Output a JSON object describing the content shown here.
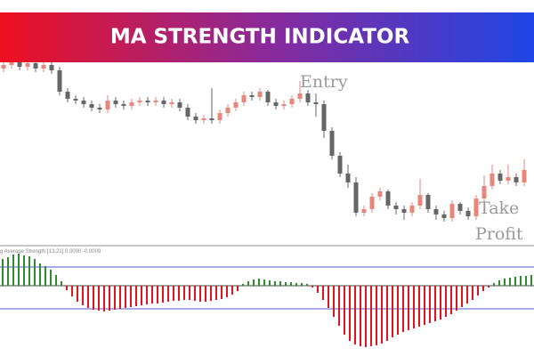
{
  "chart_data": [
    {
      "type": "candlestick",
      "title": "MA STRENGTH INDICATOR",
      "annotations": [
        "Entry",
        "Take",
        "Profit"
      ],
      "up_color": "#e8867c",
      "down_color": "#666666",
      "ylim": [
        0,
        137.5
      ],
      "open": [
        99,
        101,
        103,
        100,
        102,
        99,
        101,
        98,
        86,
        82,
        81,
        79,
        77,
        76,
        81,
        79,
        78,
        80,
        81,
        80,
        81,
        79,
        80,
        77,
        72,
        70,
        71,
        70,
        74,
        77,
        80,
        84,
        83,
        86,
        80,
        78,
        79,
        82,
        85,
        80,
        79,
        64,
        50,
        40,
        35,
        18,
        20,
        27,
        30,
        22,
        20,
        18,
        22,
        28,
        20,
        17,
        15,
        23,
        19,
        16,
        26,
        33,
        40,
        36,
        38,
        35
      ],
      "high": [
        103,
        105,
        105,
        104,
        104,
        103,
        103,
        100,
        88,
        84,
        83,
        81,
        79,
        84,
        83,
        81,
        82,
        83,
        83,
        83,
        83,
        82,
        82,
        79,
        74,
        73,
        88,
        76,
        79,
        82,
        86,
        86,
        88,
        87,
        82,
        81,
        84,
        92,
        87,
        85,
        81,
        66,
        52,
        45,
        38,
        22,
        29,
        32,
        31,
        24,
        22,
        24,
        37,
        29,
        22,
        19,
        25,
        24,
        21,
        28,
        39,
        45,
        42,
        45,
        40,
        48
      ],
      "low": [
        97,
        99,
        98,
        98,
        97,
        97,
        96,
        84,
        80,
        79,
        77,
        75,
        74,
        74,
        77,
        76,
        76,
        78,
        78,
        78,
        77,
        77,
        75,
        70,
        68,
        68,
        68,
        68,
        72,
        75,
        78,
        81,
        81,
        78,
        76,
        76,
        77,
        80,
        78,
        72,
        60,
        48,
        38,
        32,
        16,
        16,
        18,
        25,
        20,
        17,
        14,
        16,
        20,
        18,
        14,
        13,
        13,
        17,
        14,
        14,
        24,
        31,
        34,
        34,
        33,
        33
      ],
      "close": [
        101,
        103,
        100,
        102,
        99,
        101,
        98,
        86,
        82,
        81,
        79,
        77,
        76,
        81,
        79,
        78,
        80,
        81,
        80,
        81,
        79,
        80,
        77,
        72,
        70,
        71,
        70,
        74,
        77,
        80,
        84,
        83,
        86,
        80,
        78,
        79,
        82,
        85,
        80,
        79,
        64,
        50,
        40,
        35,
        18,
        20,
        27,
        30,
        22,
        20,
        18,
        22,
        28,
        20,
        17,
        15,
        23,
        19,
        16,
        26,
        33,
        40,
        36,
        38,
        35,
        42
      ]
    },
    {
      "type": "bar",
      "label": "Moving Average Strength [13,21] 0.0000 -0.0009",
      "positive_color": "#2e8b2e",
      "negative_color": "#e0141e",
      "level_color": "#5a5ad6",
      "ylim": [
        -77,
        44
      ],
      "levels": [
        21,
        -26
      ],
      "values": [
        30,
        32,
        35,
        36,
        34,
        33,
        30,
        25,
        22,
        18,
        12,
        5,
        -5,
        -12,
        -18,
        -22,
        -25,
        -27,
        -28,
        -29,
        -28,
        -27,
        -26,
        -25,
        -24,
        -23,
        -22,
        -21,
        -20,
        -20,
        -19,
        -18,
        -17,
        -17,
        -16,
        -16,
        -17,
        -18,
        -18,
        -17,
        -16,
        -15,
        -13,
        -10,
        -6,
        2,
        5,
        7,
        8,
        7,
        6,
        5,
        5,
        4,
        4,
        3,
        3,
        2,
        -2,
        -8,
        -16,
        -25,
        -35,
        -45,
        -55,
        -62,
        -66,
        -68,
        -69,
        -68,
        -67,
        -65,
        -62,
        -58,
        -55,
        -52,
        -50,
        -48,
        -46,
        -44,
        -42,
        -40,
        -38,
        -35,
        -32,
        -28,
        -24,
        -20,
        -16,
        -11,
        -6,
        -2,
        3,
        6,
        8,
        9,
        10,
        11,
        11,
        12
      ]
    }
  ]
}
